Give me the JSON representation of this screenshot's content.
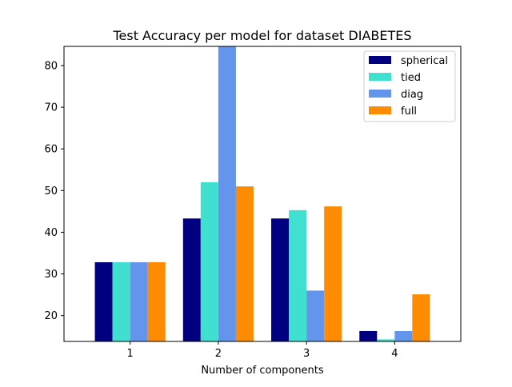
{
  "chart_data": {
    "type": "bar",
    "title": "Test Accuracy per model for dataset DIABETES",
    "xlabel": "Number of components",
    "ylabel": "",
    "categories": [
      "1",
      "2",
      "3",
      "4"
    ],
    "ylim": [
      13.8,
      84.6
    ],
    "yticks": [
      "20",
      "30",
      "40",
      "50",
      "60",
      "70",
      "80"
    ],
    "legend_position": "top-right",
    "grid": false,
    "series": [
      {
        "name": "spherical",
        "color": "#000080",
        "values": [
          32.8,
          43.3,
          43.3,
          16.3
        ]
      },
      {
        "name": "tied",
        "color": "#40E0D0",
        "values": [
          32.8,
          52.0,
          45.3,
          14.3
        ]
      },
      {
        "name": "diag",
        "color": "#6495ED",
        "values": [
          32.8,
          84.6,
          26.0,
          16.3
        ]
      },
      {
        "name": "full",
        "color": "#FF8C00",
        "values": [
          32.8,
          51.0,
          46.2,
          25.1
        ]
      }
    ]
  }
}
